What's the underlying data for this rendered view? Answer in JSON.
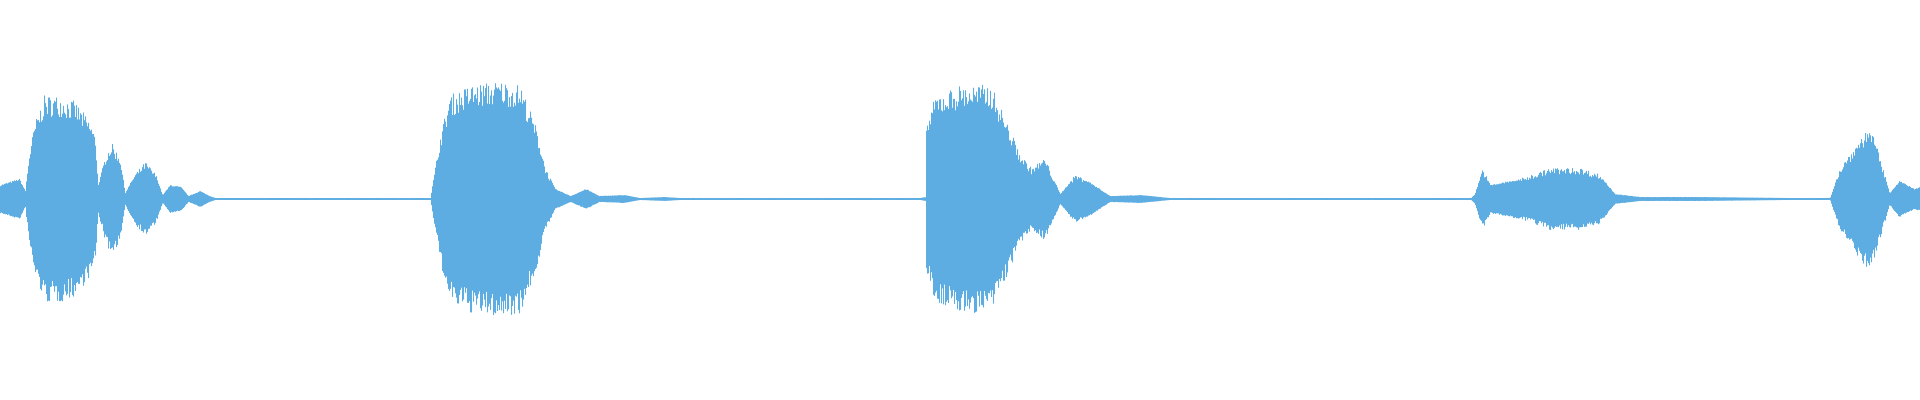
{
  "waveform": {
    "color": "#5dade2",
    "background": "#ffffff",
    "duration_percent_range": [
      0,
      100
    ],
    "amplitude_range": [
      -1,
      1
    ],
    "envelope": [
      [
        0,
        0.07
      ],
      [
        1,
        0.1
      ],
      [
        1.3,
        0.04
      ],
      [
        1.5,
        0.22
      ],
      [
        1.8,
        0.37
      ],
      [
        2.3,
        0.5
      ],
      [
        3.1,
        0.5
      ],
      [
        3.9,
        0.47
      ],
      [
        4.7,
        0.37
      ],
      [
        4.95,
        0.3
      ],
      [
        5.1,
        0.07
      ],
      [
        5.5,
        0.22
      ],
      [
        5.8,
        0.27
      ],
      [
        6.25,
        0.2
      ],
      [
        6.5,
        0.03
      ],
      [
        7.0,
        0.12
      ],
      [
        7.55,
        0.18
      ],
      [
        8.1,
        0.12
      ],
      [
        8.45,
        0.02
      ],
      [
        8.85,
        0.07
      ],
      [
        9.4,
        0.06
      ],
      [
        9.8,
        0.015
      ],
      [
        10.4,
        0.04
      ],
      [
        10.9,
        0.015
      ],
      [
        11.2,
        0.005
      ],
      [
        12,
        0.005
      ],
      [
        22.4,
        0.005
      ],
      [
        22.9,
        0.3
      ],
      [
        23.4,
        0.5
      ],
      [
        24.5,
        0.55
      ],
      [
        26,
        0.57
      ],
      [
        27.1,
        0.55
      ],
      [
        27.9,
        0.35
      ],
      [
        28.4,
        0.15
      ],
      [
        28.9,
        0.05
      ],
      [
        29.7,
        0.015
      ],
      [
        30.5,
        0.05
      ],
      [
        31.2,
        0.015
      ],
      [
        32.5,
        0.02
      ],
      [
        33.3,
        0.005
      ],
      [
        34.6,
        0.01
      ],
      [
        35.4,
        0.005
      ],
      [
        47.9,
        0.005
      ],
      [
        48.2,
        0.01
      ],
      [
        48.2,
        0.35
      ],
      [
        48.7,
        0.5
      ],
      [
        50,
        0.55
      ],
      [
        51.6,
        0.55
      ],
      [
        52.3,
        0.4
      ],
      [
        53.1,
        0.22
      ],
      [
        53.7,
        0.15
      ],
      [
        54.4,
        0.2
      ],
      [
        55.2,
        0.025
      ],
      [
        56,
        0.12
      ],
      [
        56.8,
        0.08
      ],
      [
        57.8,
        0.015
      ],
      [
        59.4,
        0.02
      ],
      [
        60.9,
        0.005
      ],
      [
        76.6,
        0.005
      ],
      [
        76.8,
        0.025
      ],
      [
        77.2,
        0.15
      ],
      [
        77.6,
        0.07
      ],
      [
        79.2,
        0.1
      ],
      [
        80.7,
        0.15
      ],
      [
        82.3,
        0.15
      ],
      [
        83.3,
        0.12
      ],
      [
        84.1,
        0.025
      ],
      [
        85.4,
        0.01
      ],
      [
        88.5,
        0.01
      ],
      [
        93.2,
        0.005
      ],
      [
        95.3,
        0.005
      ],
      [
        95.8,
        0.15
      ],
      [
        96.9,
        0.3
      ],
      [
        97.4,
        0.35
      ],
      [
        97.9,
        0.2
      ],
      [
        98.4,
        0.03
      ],
      [
        98.9,
        0.09
      ],
      [
        99.7,
        0.05
      ],
      [
        100,
        0.06
      ]
    ]
  }
}
